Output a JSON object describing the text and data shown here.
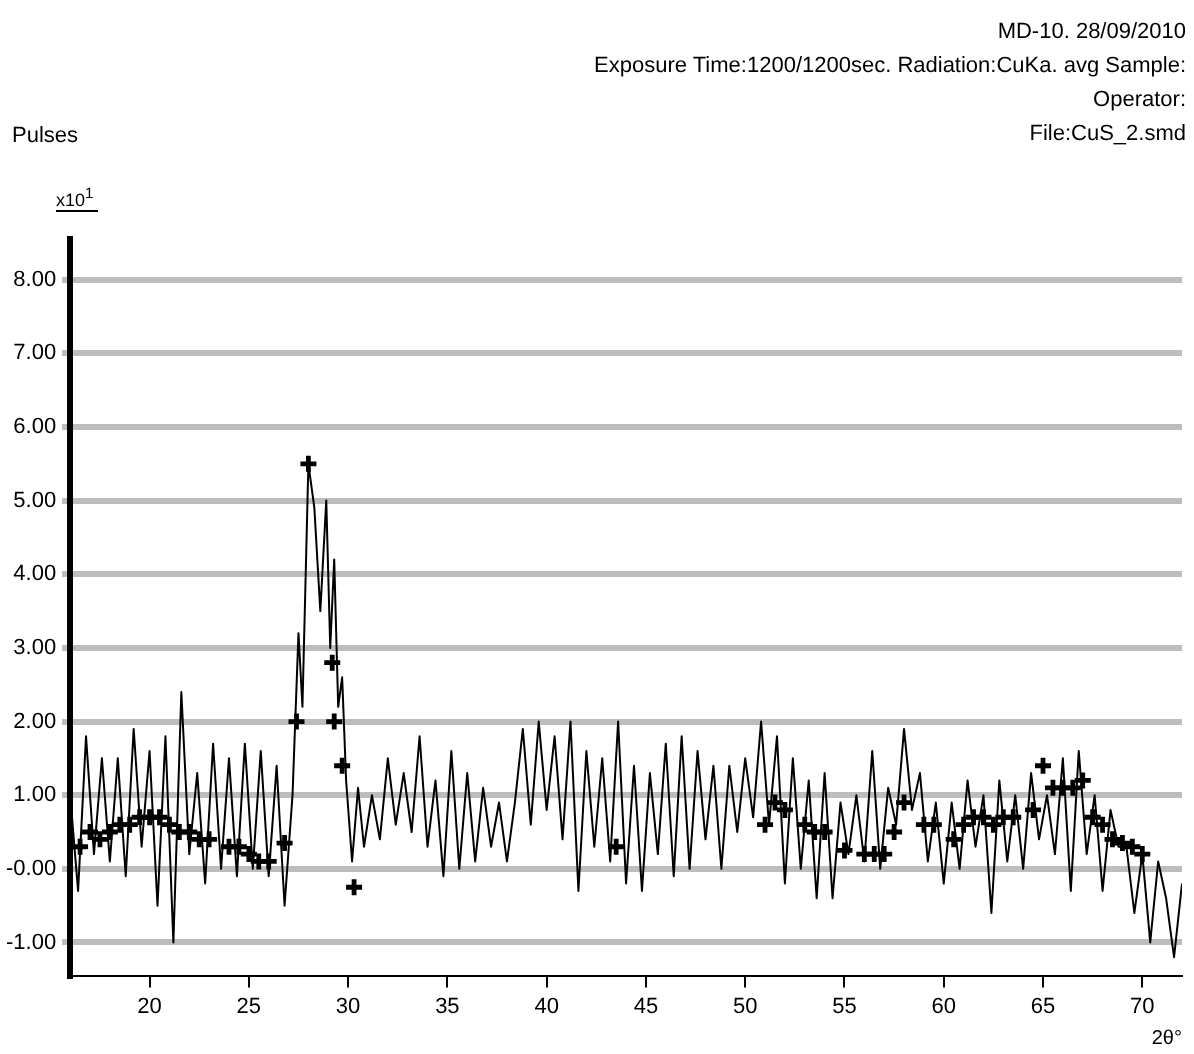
{
  "chart_data": {
    "type": "line",
    "ylabel": "Pulses",
    "xlabel": "2θ°",
    "annotations": [
      "MD-10.  28/09/2010",
      "Exposure Time:1200/1200sec.  Radiation:CuKa. avg    Sample:",
      "Operator:",
      "File:CuS_2.smd",
      "x10$^{1}$"
    ],
    "xlim": [
      16,
      72
    ],
    "ylim": [
      -1.45,
      8.55
    ],
    "xticks": [
      20,
      25,
      30,
      35,
      40,
      45,
      50,
      55,
      60,
      65,
      70
    ],
    "yticks": [
      {
        "value": -1,
        "label": "-1.00"
      },
      {
        "value": 0,
        "label": "-0.00"
      },
      {
        "value": 1,
        "label": "1.00"
      },
      {
        "value": 2,
        "label": "2.00"
      },
      {
        "value": 3,
        "label": "3.00"
      },
      {
        "value": 4,
        "label": "4.00"
      },
      {
        "value": 5,
        "label": "5.00"
      },
      {
        "value": 6,
        "label": "6.00"
      },
      {
        "value": 7,
        "label": "7.00"
      },
      {
        "value": 8,
        "label": "8.00"
      }
    ],
    "grid": "y",
    "legend": false,
    "series": [
      {
        "type": "line",
        "color": "#000000",
        "marker": "none",
        "x": [
          16.0,
          16.4,
          16.8,
          17.2,
          17.6,
          18.0,
          18.4,
          18.8,
          19.2,
          19.6,
          20.0,
          20.4,
          20.8,
          21.2,
          21.6,
          22.0,
          22.4,
          22.8,
          23.2,
          23.6,
          24.0,
          24.4,
          24.8,
          25.2,
          25.6,
          26.0,
          26.4,
          26.8,
          27.2,
          27.5,
          27.7,
          28.0,
          28.3,
          28.6,
          28.9,
          29.1,
          29.3,
          29.5,
          29.7,
          29.9,
          30.2,
          30.5,
          30.8,
          31.2,
          31.6,
          32.0,
          32.4,
          32.8,
          33.2,
          33.6,
          34.0,
          34.4,
          34.8,
          35.2,
          35.6,
          36.0,
          36.4,
          36.8,
          37.2,
          37.6,
          38.0,
          38.4,
          38.8,
          39.2,
          39.6,
          40.0,
          40.4,
          40.8,
          41.2,
          41.6,
          42.0,
          42.4,
          42.8,
          43.2,
          43.6,
          44.0,
          44.4,
          44.8,
          45.2,
          45.6,
          46.0,
          46.4,
          46.8,
          47.2,
          47.6,
          48.0,
          48.4,
          48.8,
          49.2,
          49.6,
          50.0,
          50.4,
          50.8,
          51.2,
          51.6,
          52.0,
          52.4,
          52.8,
          53.2,
          53.6,
          54.0,
          54.4,
          54.8,
          55.2,
          55.6,
          56.0,
          56.4,
          56.8,
          57.2,
          57.6,
          58.0,
          58.4,
          58.8,
          59.2,
          59.6,
          60.0,
          60.4,
          60.8,
          61.2,
          61.6,
          62.0,
          62.4,
          62.8,
          63.2,
          63.6,
          64.0,
          64.4,
          64.8,
          65.2,
          65.6,
          66.0,
          66.4,
          66.8,
          67.2,
          67.6,
          68.0,
          68.4,
          68.8,
          69.2,
          69.6,
          70.0,
          70.4,
          70.8,
          71.2,
          71.6,
          72.0
        ],
        "values": [
          1.0,
          -0.3,
          1.8,
          0.2,
          1.5,
          0.1,
          1.5,
          -0.1,
          1.9,
          0.3,
          1.6,
          -0.5,
          1.8,
          -1.0,
          2.4,
          0.2,
          1.3,
          -0.2,
          1.7,
          0.0,
          1.5,
          -0.1,
          1.7,
          0.0,
          1.6,
          -0.1,
          1.4,
          -0.5,
          1.0,
          3.2,
          2.2,
          5.5,
          4.9,
          3.5,
          5.0,
          3.0,
          4.2,
          2.2,
          2.6,
          1.2,
          0.1,
          1.1,
          0.3,
          1.0,
          0.4,
          1.5,
          0.6,
          1.3,
          0.5,
          1.8,
          0.3,
          1.2,
          -0.1,
          1.6,
          0.0,
          1.3,
          0.1,
          1.1,
          0.3,
          0.9,
          0.1,
          0.9,
          1.9,
          0.6,
          2.0,
          0.8,
          1.8,
          0.4,
          2.0,
          -0.3,
          1.6,
          0.3,
          1.5,
          0.1,
          2.0,
          -0.2,
          1.4,
          -0.3,
          1.3,
          0.2,
          1.7,
          -0.1,
          1.8,
          0.0,
          1.6,
          0.4,
          1.4,
          0.0,
          1.4,
          0.5,
          1.5,
          0.7,
          2.0,
          0.6,
          1.8,
          -0.2,
          1.5,
          0.0,
          1.2,
          -0.4,
          1.3,
          -0.4,
          0.9,
          0.2,
          1.0,
          0.1,
          1.6,
          0.0,
          1.1,
          0.6,
          1.9,
          0.8,
          1.3,
          0.1,
          0.9,
          -0.2,
          0.9,
          0.0,
          1.2,
          0.3,
          1.0,
          -0.6,
          1.2,
          0.1,
          1.0,
          0.0,
          1.3,
          0.4,
          1.0,
          0.2,
          1.5,
          -0.3,
          1.6,
          0.2,
          1.0,
          -0.3,
          0.8,
          0.3,
          0.3,
          -0.6,
          0.2,
          -1.0,
          0.1,
          -0.4,
          -1.2,
          -0.2
        ]
      },
      {
        "type": "scatter",
        "color": "#000000",
        "marker": "cross",
        "x": [
          16.5,
          17,
          17.5,
          18,
          18.5,
          19,
          19.5,
          20,
          20.5,
          21,
          21.5,
          22,
          22.5,
          23,
          24,
          24.5,
          25,
          25.5,
          26,
          26.8,
          27.4,
          28.0,
          29.2,
          29.3,
          29.7,
          30.3,
          43.5,
          51,
          51.5,
          52,
          53,
          53.5,
          54,
          55,
          56,
          56.5,
          57,
          57.5,
          58,
          59,
          59.5,
          60.5,
          61,
          61.5,
          62,
          62.5,
          63,
          63.5,
          64.5,
          65,
          65.5,
          66,
          66.5,
          67,
          67.5,
          68,
          68.5,
          69,
          69.5,
          70
        ],
        "values": [
          0.3,
          0.5,
          0.4,
          0.5,
          0.6,
          0.6,
          0.7,
          0.7,
          0.7,
          0.6,
          0.5,
          0.5,
          0.4,
          0.4,
          0.3,
          0.3,
          0.2,
          0.1,
          0.1,
          0.35,
          2.0,
          5.5,
          2.8,
          2.0,
          1.4,
          -0.25,
          0.3,
          0.6,
          0.9,
          0.8,
          0.6,
          0.5,
          0.5,
          0.25,
          0.2,
          0.2,
          0.2,
          0.5,
          0.9,
          0.6,
          0.6,
          0.4,
          0.6,
          0.7,
          0.7,
          0.6,
          0.7,
          0.7,
          0.8,
          1.4,
          1.1,
          1.1,
          1.1,
          1.2,
          0.7,
          0.6,
          0.4,
          0.35,
          0.3,
          0.2
        ]
      }
    ]
  }
}
